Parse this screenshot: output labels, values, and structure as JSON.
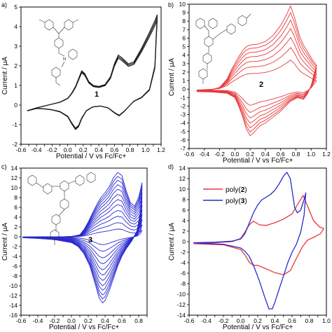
{
  "chart_data": [
    {
      "id": "a",
      "type": "line",
      "panel_label": "a)",
      "compound_label": "1",
      "xlabel": "Potential / V vs Fc/Fc+",
      "ylabel": "Current / μA",
      "xlim": [
        -0.6,
        1.2
      ],
      "ylim": [
        -2,
        5
      ],
      "xticks": [
        -0.6,
        -0.5,
        -0.4,
        -0.3,
        -0.2,
        -0.1,
        0.0,
        0.1,
        0.2,
        0.3,
        0.4,
        0.5,
        0.6,
        0.7,
        0.8,
        0.9,
        1.0,
        1.1,
        1.2
      ],
      "yticks": [
        -2,
        -1,
        0,
        1,
        2,
        3,
        4,
        5
      ],
      "color": "#1a1a1a",
      "series": [
        {
          "scale": 1.0,
          "values": []
        },
        {
          "scale": 0.97,
          "values": []
        },
        {
          "scale": 0.94,
          "values": []
        }
      ],
      "anodic": [
        [
          -0.52,
          -0.3
        ],
        [
          -0.4,
          -0.15
        ],
        [
          -0.3,
          -0.05
        ],
        [
          -0.2,
          0.05
        ],
        [
          -0.1,
          0.15
        ],
        [
          0.0,
          0.35
        ],
        [
          0.05,
          0.6
        ],
        [
          0.1,
          0.95
        ],
        [
          0.15,
          1.45
        ],
        [
          0.18,
          1.75
        ],
        [
          0.22,
          1.6
        ],
        [
          0.27,
          1.2
        ],
        [
          0.33,
          1.0
        ],
        [
          0.4,
          0.95
        ],
        [
          0.48,
          1.05
        ],
        [
          0.55,
          1.45
        ],
        [
          0.6,
          2.1
        ],
        [
          0.65,
          2.55
        ],
        [
          0.7,
          2.4
        ],
        [
          0.78,
          2.1
        ],
        [
          0.85,
          2.2
        ],
        [
          0.95,
          2.9
        ],
        [
          1.05,
          3.7
        ],
        [
          1.12,
          4.3
        ],
        [
          1.15,
          4.6
        ]
      ],
      "cathodic": [
        [
          1.15,
          4.6
        ],
        [
          1.12,
          2.0
        ],
        [
          1.05,
          0.8
        ],
        [
          0.95,
          0.4
        ],
        [
          0.85,
          0.2
        ],
        [
          0.78,
          -0.1
        ],
        [
          0.72,
          -0.35
        ],
        [
          0.66,
          -0.55
        ],
        [
          0.6,
          -0.4
        ],
        [
          0.52,
          -0.15
        ],
        [
          0.42,
          -0.05
        ],
        [
          0.32,
          -0.1
        ],
        [
          0.24,
          -0.3
        ],
        [
          0.18,
          -0.7
        ],
        [
          0.14,
          -1.1
        ],
        [
          0.1,
          -1.25
        ],
        [
          0.05,
          -0.95
        ],
        [
          0.0,
          -0.6
        ],
        [
          -0.1,
          -0.35
        ],
        [
          -0.2,
          -0.25
        ],
        [
          -0.3,
          -0.2
        ],
        [
          -0.4,
          -0.18
        ],
        [
          -0.52,
          -0.3
        ]
      ]
    },
    {
      "id": "b",
      "type": "line",
      "panel_label": "b)",
      "compound_label": "2",
      "xlabel": "Potential / V vs Fc/Fc+",
      "ylabel": "Current / μA",
      "xlim": [
        -0.6,
        1.2
      ],
      "ylim": [
        -7,
        10
      ],
      "xticks": [
        -0.6,
        -0.4,
        -0.2,
        0.0,
        0.2,
        0.4,
        0.6,
        0.8,
        1.0,
        1.2
      ],
      "yticks": [
        -7,
        -6,
        -5,
        -4,
        -3,
        -2,
        -1,
        0,
        1,
        2,
        3,
        4,
        5,
        6,
        7,
        8,
        9,
        10
      ],
      "color": "#e8383b",
      "series": [
        {
          "scale": 0.35
        },
        {
          "scale": 0.5
        },
        {
          "scale": 0.62
        },
        {
          "scale": 0.73
        },
        {
          "scale": 0.83
        },
        {
          "scale": 0.92
        },
        {
          "scale": 1.0
        }
      ],
      "anodic": [
        [
          -0.5,
          -0.3
        ],
        [
          -0.4,
          -0.2
        ],
        [
          -0.3,
          -0.05
        ],
        [
          -0.2,
          0.2
        ],
        [
          -0.1,
          1.2
        ],
        [
          -0.05,
          2.2
        ],
        [
          0.0,
          3.0
        ],
        [
          0.05,
          3.8
        ],
        [
          0.1,
          4.5
        ],
        [
          0.15,
          5.0
        ],
        [
          0.2,
          5.2
        ],
        [
          0.3,
          5.3
        ],
        [
          0.4,
          5.6
        ],
        [
          0.5,
          6.3
        ],
        [
          0.6,
          7.5
        ],
        [
          0.68,
          8.8
        ],
        [
          0.73,
          9.8
        ],
        [
          0.78,
          8.5
        ],
        [
          0.85,
          6.2
        ],
        [
          0.9,
          5.2
        ],
        [
          0.96,
          4.3
        ],
        [
          1.02,
          3.4
        ],
        [
          1.07,
          2.8
        ]
      ],
      "cathodic": [
        [
          1.07,
          2.8
        ],
        [
          1.0,
          0.4
        ],
        [
          0.95,
          -0.6
        ],
        [
          0.9,
          -1.2
        ],
        [
          0.82,
          -1.0
        ],
        [
          0.72,
          -1.5
        ],
        [
          0.6,
          -2.6
        ],
        [
          0.5,
          -3.3
        ],
        [
          0.4,
          -4.0
        ],
        [
          0.33,
          -4.3
        ],
        [
          0.25,
          -5.1
        ],
        [
          0.2,
          -5.5
        ],
        [
          0.15,
          -4.7
        ],
        [
          0.1,
          -3.2
        ],
        [
          0.05,
          -2.0
        ],
        [
          0.0,
          -1.0
        ],
        [
          -0.1,
          -0.5
        ],
        [
          -0.3,
          -0.35
        ],
        [
          -0.5,
          -0.3
        ]
      ]
    },
    {
      "id": "c",
      "type": "line",
      "panel_label": "c)",
      "compound_label": "3",
      "xlabel": "Potential / V vs Fc/Fc+",
      "ylabel": "Current / μA",
      "xlim": [
        -0.6,
        0.9
      ],
      "ylim": [
        -16,
        14
      ],
      "xticks": [
        -0.6,
        -0.5,
        -0.4,
        -0.3,
        -0.2,
        -0.1,
        0.0,
        0.1,
        0.2,
        0.3,
        0.4,
        0.5,
        0.6,
        0.7,
        0.8,
        0.9
      ],
      "yticks": [
        -16,
        -14,
        -12,
        -10,
        -8,
        -6,
        -4,
        -2,
        0,
        2,
        4,
        6,
        8,
        10,
        12,
        14
      ],
      "color": "#2a2ad0",
      "series": [
        {
          "scale": 0.12
        },
        {
          "scale": 0.22
        },
        {
          "scale": 0.32
        },
        {
          "scale": 0.41
        },
        {
          "scale": 0.5
        },
        {
          "scale": 0.58
        },
        {
          "scale": 0.66
        },
        {
          "scale": 0.74
        },
        {
          "scale": 0.81
        },
        {
          "scale": 0.88
        },
        {
          "scale": 0.94
        },
        {
          "scale": 1.0
        }
      ],
      "anodic": [
        [
          -0.58,
          -0.2
        ],
        [
          -0.4,
          -0.1
        ],
        [
          -0.2,
          -0.05
        ],
        [
          0.0,
          0.05
        ],
        [
          0.1,
          0.4
        ],
        [
          0.15,
          1.5
        ],
        [
          0.2,
          3.0
        ],
        [
          0.25,
          4.8
        ],
        [
          0.3,
          6.5
        ],
        [
          0.35,
          8.0
        ],
        [
          0.4,
          9.0
        ],
        [
          0.45,
          10.2
        ],
        [
          0.5,
          12.0
        ],
        [
          0.55,
          13.1
        ],
        [
          0.6,
          12.5
        ],
        [
          0.65,
          9.5
        ],
        [
          0.7,
          7.0
        ],
        [
          0.75,
          6.2
        ],
        [
          0.8,
          8.0
        ],
        [
          0.84,
          11.0
        ]
      ],
      "cathodic": [
        [
          0.84,
          11.0
        ],
        [
          0.82,
          5.0
        ],
        [
          0.78,
          1.2
        ],
        [
          0.72,
          -0.8
        ],
        [
          0.65,
          -2.5
        ],
        [
          0.6,
          -4.0
        ],
        [
          0.55,
          -6.0
        ],
        [
          0.5,
          -8.5
        ],
        [
          0.45,
          -11.0
        ],
        [
          0.4,
          -13.0
        ],
        [
          0.37,
          -13.5
        ],
        [
          0.33,
          -12.5
        ],
        [
          0.28,
          -9.5
        ],
        [
          0.22,
          -6.0
        ],
        [
          0.15,
          -3.5
        ],
        [
          0.08,
          -2.0
        ],
        [
          0.0,
          -1.2
        ],
        [
          -0.2,
          -0.6
        ],
        [
          -0.4,
          -0.35
        ],
        [
          -0.58,
          -0.2
        ]
      ]
    },
    {
      "id": "d",
      "type": "line",
      "panel_label": "d)",
      "xlabel": "Potential / V vs Fc/Fc+",
      "ylabel": "Current / μA",
      "xlim": [
        -0.6,
        1.0
      ],
      "ylim": [
        -14,
        14
      ],
      "xticks": [
        -0.6,
        -0.5,
        -0.4,
        -0.3,
        -0.2,
        -0.1,
        0.0,
        0.1,
        0.2,
        0.3,
        0.4,
        0.5,
        0.6,
        0.7,
        0.8,
        0.9,
        1.0
      ],
      "yticks": [
        -14,
        -12,
        -10,
        -8,
        -6,
        -4,
        -2,
        0,
        2,
        4,
        6,
        8,
        10,
        12,
        14
      ],
      "legend_position": "top-right",
      "series": [
        {
          "name": "poly(2)",
          "name_prefix": "poly(",
          "name_bold": "2",
          "name_suffix": ")",
          "color": "#e8383b",
          "values": [
            [
              -0.55,
              -0.4
            ],
            [
              -0.3,
              -0.2
            ],
            [
              -0.1,
              0.0
            ],
            [
              0.0,
              0.6
            ],
            [
              0.05,
              1.8
            ],
            [
              0.1,
              3.2
            ],
            [
              0.15,
              3.9
            ],
            [
              0.22,
              3.2
            ],
            [
              0.3,
              3.1
            ],
            [
              0.4,
              3.6
            ],
            [
              0.5,
              4.3
            ],
            [
              0.6,
              5.3
            ],
            [
              0.68,
              7.5
            ],
            [
              0.73,
              8.8
            ],
            [
              0.78,
              6.8
            ],
            [
              0.85,
              4.0
            ],
            [
              0.92,
              2.8
            ],
            [
              0.97,
              2.5
            ],
            [
              0.93,
              1.5
            ],
            [
              0.85,
              0.8
            ],
            [
              0.78,
              0.3
            ],
            [
              0.72,
              -1.0
            ],
            [
              0.65,
              -3.2
            ],
            [
              0.58,
              -5.5
            ],
            [
              0.5,
              -6.3
            ],
            [
              0.4,
              -5.9
            ],
            [
              0.3,
              -5.2
            ],
            [
              0.2,
              -4.5
            ],
            [
              0.15,
              -4.5
            ],
            [
              0.1,
              -3.9
            ],
            [
              0.05,
              -2.5
            ],
            [
              0.0,
              -1.5
            ],
            [
              -0.2,
              -0.6
            ],
            [
              -0.55,
              -0.4
            ]
          ]
        },
        {
          "name": "poly(3)",
          "name_prefix": "poly(",
          "name_bold": "3",
          "name_suffix": ")",
          "color": "#2a2ad0",
          "values": [
            [
              -0.55,
              -0.2
            ],
            [
              -0.3,
              -0.1
            ],
            [
              -0.1,
              0.1
            ],
            [
              0.0,
              0.5
            ],
            [
              0.05,
              1.5
            ],
            [
              0.1,
              3.5
            ],
            [
              0.15,
              5.5
            ],
            [
              0.2,
              7.0
            ],
            [
              0.25,
              8.0
            ],
            [
              0.3,
              8.5
            ],
            [
              0.35,
              9.0
            ],
            [
              0.4,
              9.8
            ],
            [
              0.45,
              11.0
            ],
            [
              0.5,
              12.5
            ],
            [
              0.54,
              13.2
            ],
            [
              0.58,
              12.0
            ],
            [
              0.63,
              6.5
            ],
            [
              0.66,
              5.5
            ],
            [
              0.7,
              6.0
            ],
            [
              0.74,
              8.0
            ],
            [
              0.76,
              9.3
            ],
            [
              0.74,
              5.0
            ],
            [
              0.7,
              1.8
            ],
            [
              0.65,
              -0.5
            ],
            [
              0.6,
              -2.0
            ],
            [
              0.55,
              -4.0
            ],
            [
              0.5,
              -6.5
            ],
            [
              0.45,
              -9.0
            ],
            [
              0.4,
              -11.5
            ],
            [
              0.37,
              -12.8
            ],
            [
              0.33,
              -12.8
            ],
            [
              0.28,
              -10.5
            ],
            [
              0.22,
              -7.5
            ],
            [
              0.15,
              -4.5
            ],
            [
              0.1,
              -2.8
            ],
            [
              0.05,
              -1.8
            ],
            [
              0.0,
              -1.2
            ],
            [
              -0.2,
              -0.5
            ],
            [
              -0.55,
              -0.2
            ]
          ]
        }
      ]
    }
  ]
}
